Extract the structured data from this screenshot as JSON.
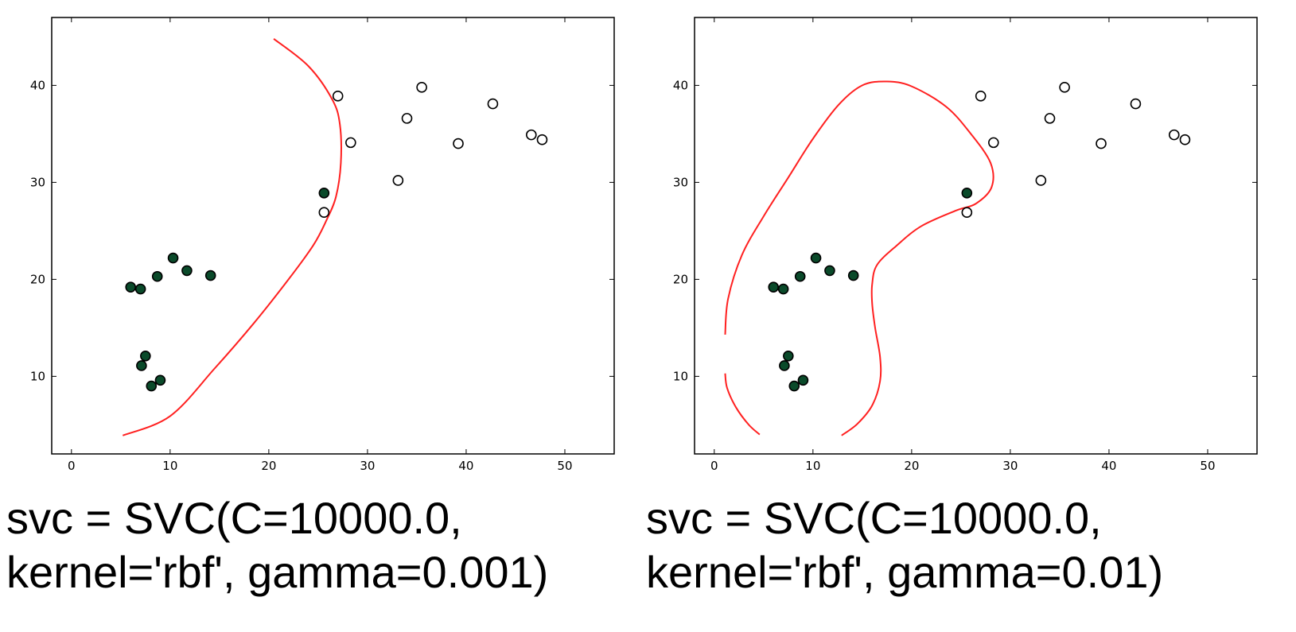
{
  "chart_data": [
    {
      "type": "scatter",
      "xlim": [
        -2,
        55
      ],
      "ylim": [
        2,
        47
      ],
      "xticks": [
        0,
        10,
        20,
        30,
        40,
        50
      ],
      "yticks": [
        10,
        20,
        30,
        40
      ],
      "grid": false,
      "caption_line1": "svc = SVC(C=10000.0,",
      "caption_line2": "kernel='rbf', gamma=0.001)",
      "filled_color": "#0a4a2a",
      "boundary_color": "#ff2020",
      "series": [
        {
          "style": "filled",
          "points": [
            [
              6,
              19.2
            ],
            [
              7,
              19
            ],
            [
              8.7,
              20.3
            ],
            [
              10.3,
              22.2
            ],
            [
              11.7,
              20.9
            ],
            [
              14.1,
              20.4
            ],
            [
              7.5,
              12.1
            ],
            [
              7.1,
              11.1
            ],
            [
              8.1,
              9
            ],
            [
              9,
              9.6
            ],
            [
              25.6,
              28.9
            ]
          ]
        },
        {
          "style": "hollow",
          "points": [
            [
              27,
              38.9
            ],
            [
              28.3,
              34.1
            ],
            [
              25.6,
              26.9
            ],
            [
              33.1,
              30.2
            ],
            [
              34,
              36.6
            ],
            [
              35.5,
              39.8
            ],
            [
              39.2,
              34
            ],
            [
              42.7,
              38.1
            ],
            [
              46.6,
              34.9
            ],
            [
              47.7,
              34.4
            ]
          ]
        }
      ],
      "boundary": [
        [
          [
            20.5,
            44.8
          ],
          [
            24,
            42
          ],
          [
            26.4,
            38.6
          ],
          [
            27.2,
            36
          ],
          [
            27.3,
            32
          ],
          [
            26.8,
            28.5
          ],
          [
            25.8,
            26
          ],
          [
            24.5,
            23.5
          ],
          [
            22,
            20
          ],
          [
            18.5,
            15.5
          ],
          [
            14.5,
            10.8
          ],
          [
            10,
            5.9
          ],
          [
            5.2,
            3.9
          ]
        ]
      ]
    },
    {
      "type": "scatter",
      "xlim": [
        -2,
        55
      ],
      "ylim": [
        2,
        47
      ],
      "xticks": [
        0,
        10,
        20,
        30,
        40,
        50
      ],
      "yticks": [
        10,
        20,
        30,
        40
      ],
      "grid": false,
      "caption_line1": "svc = SVC(C=10000.0,",
      "caption_line2": "kernel='rbf', gamma=0.01)",
      "filled_color": "#0a4a2a",
      "boundary_color": "#ff2020",
      "series": [
        {
          "style": "filled",
          "points": [
            [
              6,
              19.2
            ],
            [
              7,
              19
            ],
            [
              8.7,
              20.3
            ],
            [
              10.3,
              22.2
            ],
            [
              11.7,
              20.9
            ],
            [
              14.1,
              20.4
            ],
            [
              7.5,
              12.1
            ],
            [
              7.1,
              11.1
            ],
            [
              8.1,
              9
            ],
            [
              9,
              9.6
            ],
            [
              25.6,
              28.9
            ]
          ]
        },
        {
          "style": "hollow",
          "points": [
            [
              27,
              38.9
            ],
            [
              28.3,
              34.1
            ],
            [
              25.6,
              26.9
            ],
            [
              33.1,
              30.2
            ],
            [
              34,
              36.6
            ],
            [
              35.5,
              39.8
            ],
            [
              39.2,
              34
            ],
            [
              42.7,
              38.1
            ],
            [
              46.6,
              34.9
            ],
            [
              47.7,
              34.4
            ]
          ]
        }
      ],
      "boundary": [
        [
          [
            1.1,
            14.3
          ],
          [
            1.4,
            18
          ],
          [
            2.8,
            22.5
          ],
          [
            5,
            26.5
          ],
          [
            7.5,
            30.5
          ],
          [
            10,
            34.5
          ],
          [
            12.6,
            38
          ],
          [
            15,
            40
          ],
          [
            17.5,
            40.4
          ],
          [
            20,
            39.9
          ],
          [
            23.5,
            37.8
          ],
          [
            26,
            35
          ],
          [
            28,
            32
          ],
          [
            28.1,
            29.5
          ],
          [
            26.5,
            27.8
          ],
          [
            24.5,
            27.1
          ],
          [
            21,
            25.5
          ],
          [
            18.5,
            23.5
          ],
          [
            16.5,
            21.5
          ],
          [
            16,
            19.5
          ],
          [
            16,
            17.5
          ],
          [
            16.3,
            15
          ],
          [
            16.8,
            12
          ],
          [
            16.8,
            9.5
          ],
          [
            16,
            7
          ],
          [
            14.5,
            5.1
          ],
          [
            12.9,
            3.9
          ]
        ],
        [
          [
            4.6,
            4
          ],
          [
            3.5,
            5
          ],
          [
            2.2,
            6.8
          ],
          [
            1.3,
            8.8
          ],
          [
            1.1,
            10.3
          ]
        ]
      ]
    }
  ]
}
